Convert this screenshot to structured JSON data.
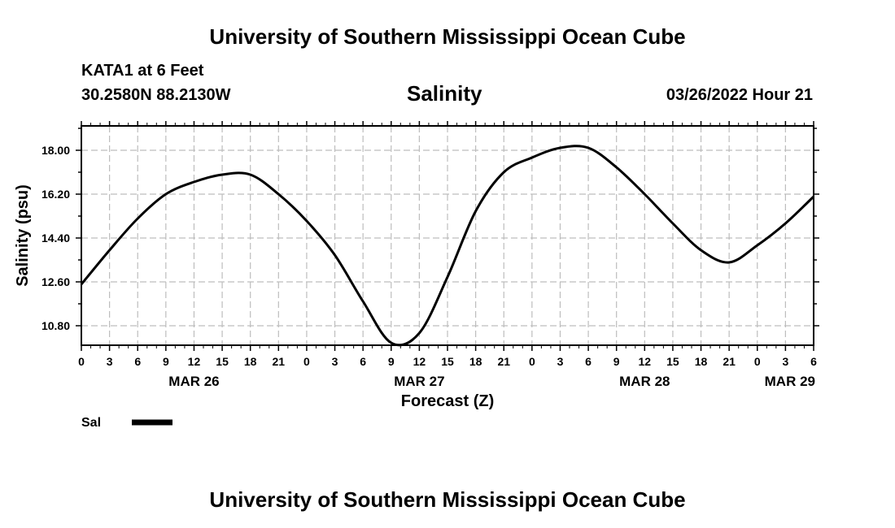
{
  "header": {
    "title": "University of Southern Mississippi Ocean Cube",
    "station": "KATA1 at 6 Feet",
    "coords": "30.2580N  88.2130W",
    "variable": "Salinity",
    "datetime": "03/26/2022 Hour 21"
  },
  "footer": {
    "title": "University of Southern Mississippi Ocean Cube"
  },
  "chart_data": {
    "type": "line",
    "title": "Salinity",
    "xlabel": "Forecast (Z)",
    "ylabel": "Salinity (psu)",
    "xlim": [
      0,
      78
    ],
    "ylim": [
      10.0,
      19.0
    ],
    "grid": true,
    "x_tick_labels": [
      "0",
      "3",
      "6",
      "9",
      "12",
      "15",
      "18",
      "21",
      "0",
      "3",
      "6",
      "9",
      "12",
      "15",
      "18",
      "21",
      "0",
      "3",
      "6",
      "9",
      "12",
      "15",
      "18",
      "21",
      "0",
      "3",
      "6"
    ],
    "y_tick_labels": [
      "10.80",
      "12.60",
      "14.40",
      "16.20",
      "18.00"
    ],
    "y_tick_values": [
      10.8,
      12.6,
      14.4,
      16.2,
      18.0
    ],
    "date_labels": [
      {
        "label": "MAR 26",
        "x": 12
      },
      {
        "label": "MAR 27",
        "x": 36
      },
      {
        "label": "MAR 28",
        "x": 60
      },
      {
        "label": "MAR 29",
        "x": 78
      }
    ],
    "legend": [
      {
        "name": "Sal",
        "color": "#000000"
      }
    ],
    "series": [
      {
        "name": "Sal",
        "color": "#000000",
        "x": [
          0,
          3,
          6,
          9,
          12,
          15,
          18,
          21,
          24,
          27,
          30,
          33,
          36,
          39,
          42,
          45,
          48,
          51,
          54,
          57,
          60,
          63,
          66,
          69,
          72,
          75,
          78
        ],
        "values": [
          12.5,
          13.9,
          15.2,
          16.2,
          16.7,
          17.0,
          17.0,
          16.2,
          15.1,
          13.7,
          11.8,
          10.1,
          10.5,
          12.8,
          15.5,
          17.1,
          17.7,
          18.1,
          18.1,
          17.3,
          16.2,
          15.0,
          13.9,
          13.4,
          14.1,
          15.0,
          16.1
        ]
      }
    ]
  }
}
